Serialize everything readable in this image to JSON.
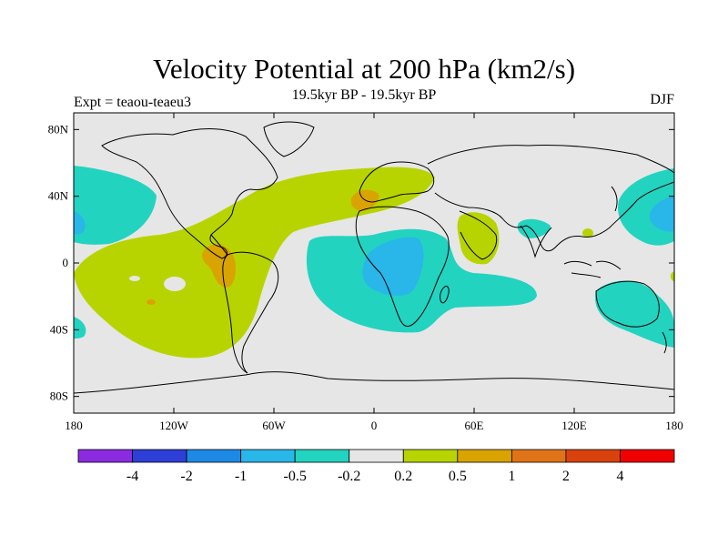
{
  "chart_data": {
    "type": "contour-map",
    "title": "Velocity Potential at 200 hPa (km2/s)",
    "subtitle": "19.5kyr BP - 19.5kyr BP",
    "left_label": "Expt = teaou-teaeu3",
    "right_label": "DJF",
    "x_ticks": [
      "180",
      "120W",
      "60W",
      "0",
      "60E",
      "120E",
      "180"
    ],
    "x_tick_values": [
      -180,
      -120,
      -60,
      0,
      60,
      120,
      180
    ],
    "y_ticks": [
      "80N",
      "40N",
      "0",
      "40S",
      "80S"
    ],
    "y_tick_values": [
      80,
      40,
      0,
      -40,
      -80
    ],
    "xlim": [
      -180,
      180
    ],
    "ylim": [
      -90,
      90
    ],
    "colorbar": {
      "levels": [
        "-4",
        "-2",
        "-1",
        "-0.5",
        "-0.2",
        "0.2",
        "0.5",
        "1",
        "2",
        "4"
      ],
      "colors": [
        "#8a2be2",
        "#2d3fd6",
        "#1e88e5",
        "#29b6e8",
        "#22d3c0",
        "#e6e6e6",
        "#b8d400",
        "#d9a400",
        "#e07318",
        "#d9420f",
        "#f00000"
      ]
    },
    "regions": [
      {
        "name": "cyan-west-pacific",
        "level": "-0.5..-0.2"
      },
      {
        "name": "blue-west-pacific",
        "level": "-1..-0.5"
      },
      {
        "name": "green-americas-atlantic",
        "level": "0.2..0.5"
      },
      {
        "name": "orange-central-america",
        "level": "0.5..1"
      },
      {
        "name": "orange-mediterranean",
        "level": "0.5..1"
      },
      {
        "name": "cyan-africa",
        "level": "-0.5..-0.2"
      },
      {
        "name": "blue-africa",
        "level": "-1..-0.5"
      },
      {
        "name": "green-arabia",
        "level": "0.2..0.5"
      },
      {
        "name": "cyan-india",
        "level": "-0.5..-0.2"
      },
      {
        "name": "cyan-australia",
        "level": "-0.5..-0.2"
      },
      {
        "name": "cyan-east-pacific",
        "level": "-0.5..-0.2"
      },
      {
        "name": "blue-east-pacific",
        "level": "-1..-0.5"
      }
    ]
  }
}
